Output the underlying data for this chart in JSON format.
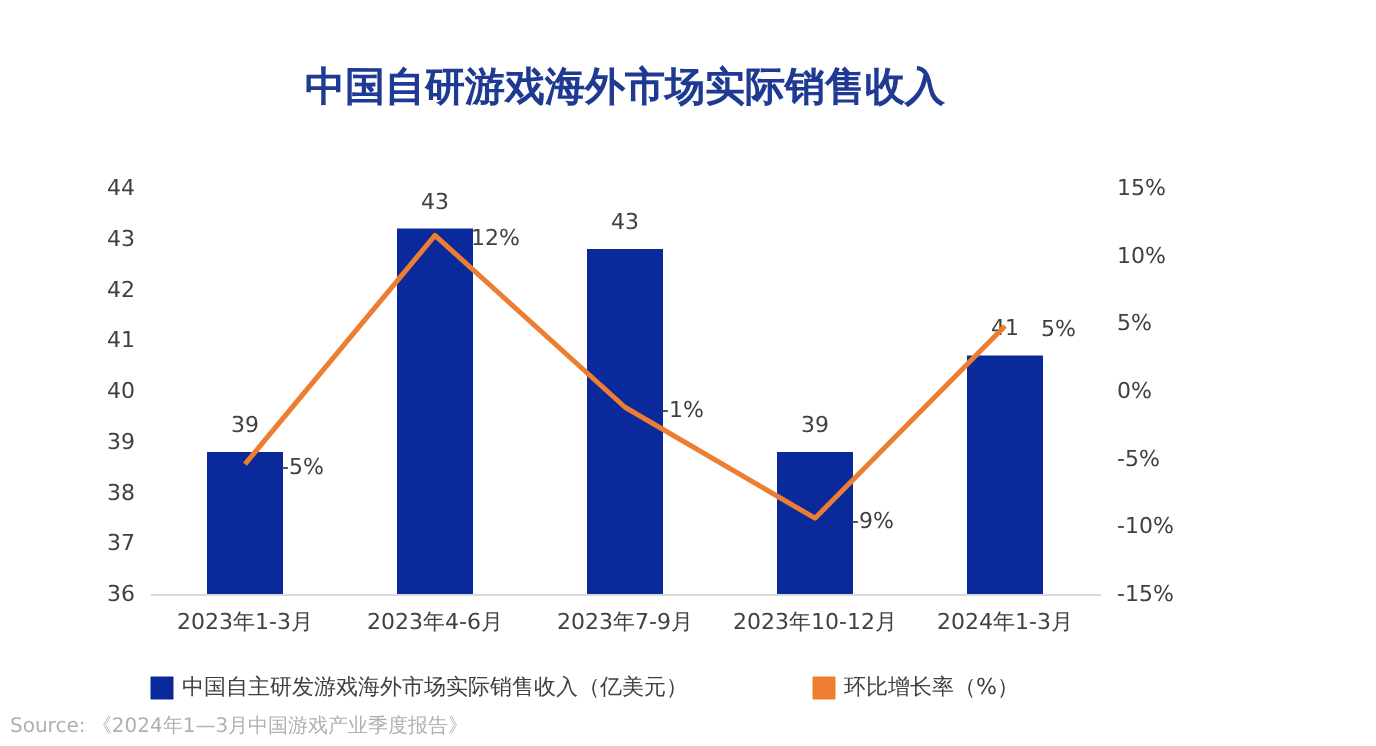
{
  "chart_data": {
    "type": "bar",
    "title": "中国自研游戏海外市场实际销售收入",
    "categories": [
      "2023年1-3月",
      "2023年4-6月",
      "2023年7-9月",
      "2023年10-12月",
      "2024年1-3月"
    ],
    "series": [
      {
        "name": "中国自主研发游戏海外市场实际销售收入（亿美元）",
        "color": "#0a2a9c",
        "values": [
          38.8,
          43.2,
          42.8,
          38.8,
          40.7
        ],
        "value_labels": [
          "39",
          "43",
          "43",
          "39",
          "41"
        ]
      },
      {
        "name": "环比增长率（%）",
        "type": "line",
        "axis": "y2",
        "color": "#ed7d31",
        "values": [
          -5.4,
          11.5,
          -1.2,
          -9.4,
          4.8
        ],
        "value_labels": [
          "-5%",
          "12%",
          "-1%",
          "-9%",
          "5%"
        ],
        "marker": "none",
        "line_style": "solid"
      }
    ],
    "ylim": [
      36,
      44
    ],
    "yticks": [
      36,
      37,
      38,
      39,
      40,
      41,
      42,
      43,
      44
    ],
    "y2lim": [
      -15,
      15
    ],
    "y2ticks": [
      {
        "value": -15,
        "label": "-15%"
      },
      {
        "value": -10,
        "label": "-10%"
      },
      {
        "value": -5,
        "label": "-5%"
      },
      {
        "value": 0,
        "label": "0%"
      },
      {
        "value": 5,
        "label": "5%"
      },
      {
        "value": 10,
        "label": "10%"
      },
      {
        "value": 15,
        "label": "15%"
      }
    ],
    "grid": false,
    "legend": "bottom",
    "annotations": [
      "Source: 《2024年1—3月中国游戏产业季度报告》"
    ]
  }
}
